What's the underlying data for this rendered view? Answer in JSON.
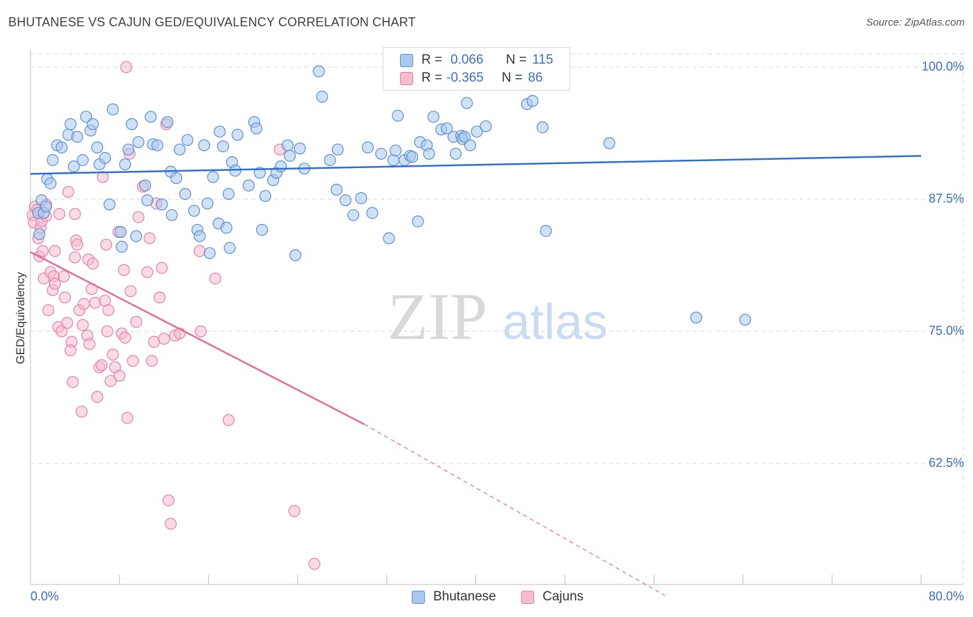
{
  "title": "BHUTANESE VS CAJUN GED/EQUIVALENCY CORRELATION CHART",
  "source": "Source: ZipAtlas.com",
  "watermark": {
    "zip": "ZIP",
    "atlas": "atlas"
  },
  "legend": {
    "rows": [
      {
        "r_label": "R =",
        "r_value": "0.066",
        "n_label": "N =",
        "n_value": "115"
      },
      {
        "r_label": "R =",
        "r_value": "-0.365",
        "n_label": "N =",
        "n_value": "86"
      }
    ]
  },
  "bottom_legend": {
    "series1": "Bhutanese",
    "series2": "Cajuns"
  },
  "colors": {
    "blue_fill": "#a9c8ef",
    "blue_stroke": "#5b8fd6",
    "blue_line": "#2f6fce",
    "pink_fill": "#f6bccd",
    "pink_stroke": "#e681a3",
    "pink_line": "#e56b98",
    "tick_text": "#3a6fc4",
    "grid": "#d9d9d9"
  },
  "chart_data": {
    "type": "scatter",
    "title": "BHUTANESE VS CAJUN GED/EQUIVALENCY CORRELATION CHART",
    "xlabel": "",
    "ylabel": "GED/Equivalency",
    "xlim": [
      0,
      80
    ],
    "ylim": [
      50,
      101
    ],
    "x_tick_labels": [
      "0.0%",
      "80.0%"
    ],
    "y_ticks": [
      62.5,
      75.0,
      87.5,
      100.0
    ],
    "y_tick_labels": [
      "62.5%",
      "75.0%",
      "87.5%",
      "100.0%"
    ],
    "grid": true,
    "series": [
      {
        "name": "Bhutanese",
        "r": 0.066,
        "n": 115,
        "trend": {
          "x0": 0,
          "y0": 89.9,
          "x1": 80,
          "y1": 91.6
        },
        "points": [
          [
            0.7,
            86.2
          ],
          [
            0.8,
            84.2
          ],
          [
            1.0,
            87.4
          ],
          [
            1.2,
            86.2
          ],
          [
            1.4,
            86.8
          ],
          [
            1.5,
            89.4
          ],
          [
            1.8,
            89.0
          ],
          [
            2.0,
            91.2
          ],
          [
            2.4,
            92.6
          ],
          [
            2.8,
            92.4
          ],
          [
            3.4,
            93.6
          ],
          [
            3.6,
            94.6
          ],
          [
            3.9,
            90.6
          ],
          [
            4.2,
            93.4
          ],
          [
            4.7,
            91.2
          ],
          [
            5.0,
            95.3
          ],
          [
            5.4,
            94.0
          ],
          [
            5.6,
            94.6
          ],
          [
            6.0,
            92.4
          ],
          [
            6.2,
            90.8
          ],
          [
            6.7,
            91.4
          ],
          [
            7.1,
            87.0
          ],
          [
            7.4,
            96.0
          ],
          [
            8.1,
            84.4
          ],
          [
            8.2,
            83.0
          ],
          [
            8.5,
            90.8
          ],
          [
            8.8,
            92.2
          ],
          [
            9.1,
            94.6
          ],
          [
            9.5,
            84.0
          ],
          [
            9.7,
            92.9
          ],
          [
            10.3,
            88.8
          ],
          [
            10.5,
            87.4
          ],
          [
            10.8,
            95.3
          ],
          [
            11.0,
            92.7
          ],
          [
            11.4,
            92.6
          ],
          [
            11.8,
            87.0
          ],
          [
            12.3,
            94.8
          ],
          [
            12.6,
            90.1
          ],
          [
            12.7,
            86.0
          ],
          [
            13.1,
            89.5
          ],
          [
            13.4,
            92.2
          ],
          [
            13.9,
            88.0
          ],
          [
            14.1,
            93.1
          ],
          [
            14.7,
            86.4
          ],
          [
            15.0,
            84.6
          ],
          [
            15.2,
            84.0
          ],
          [
            15.6,
            92.6
          ],
          [
            15.9,
            87.1
          ],
          [
            16.1,
            82.4
          ],
          [
            16.4,
            89.6
          ],
          [
            16.9,
            85.2
          ],
          [
            17.0,
            93.9
          ],
          [
            17.3,
            92.5
          ],
          [
            17.6,
            84.8
          ],
          [
            17.8,
            88.0
          ],
          [
            17.9,
            82.9
          ],
          [
            18.1,
            91.0
          ],
          [
            18.4,
            90.2
          ],
          [
            18.6,
            93.6
          ],
          [
            19.6,
            88.8
          ],
          [
            20.1,
            94.8
          ],
          [
            20.3,
            94.2
          ],
          [
            20.6,
            90.0
          ],
          [
            20.8,
            84.6
          ],
          [
            21.1,
            87.8
          ],
          [
            21.8,
            89.3
          ],
          [
            22.1,
            90.0
          ],
          [
            22.5,
            90.6
          ],
          [
            23.1,
            92.6
          ],
          [
            23.3,
            91.6
          ],
          [
            23.8,
            82.2
          ],
          [
            24.2,
            92.3
          ],
          [
            24.6,
            90.4
          ],
          [
            25.9,
            99.6
          ],
          [
            26.2,
            97.2
          ],
          [
            26.9,
            91.2
          ],
          [
            27.5,
            88.4
          ],
          [
            27.6,
            92.2
          ],
          [
            28.3,
            87.4
          ],
          [
            29.0,
            86.0
          ],
          [
            29.7,
            87.6
          ],
          [
            30.3,
            92.4
          ],
          [
            30.7,
            86.2
          ],
          [
            31.5,
            91.8
          ],
          [
            32.2,
            83.8
          ],
          [
            32.6,
            91.2
          ],
          [
            32.8,
            92.1
          ],
          [
            33.0,
            95.4
          ],
          [
            33.6,
            91.2
          ],
          [
            34.1,
            91.6
          ],
          [
            34.3,
            91.5
          ],
          [
            34.8,
            85.4
          ],
          [
            35.0,
            92.9
          ],
          [
            35.6,
            92.6
          ],
          [
            35.8,
            91.8
          ],
          [
            36.2,
            95.3
          ],
          [
            36.9,
            94.1
          ],
          [
            37.4,
            94.2
          ],
          [
            38.0,
            93.4
          ],
          [
            38.2,
            91.8
          ],
          [
            38.7,
            93.5
          ],
          [
            38.8,
            93.2
          ],
          [
            39.0,
            93.4
          ],
          [
            39.2,
            96.6
          ],
          [
            39.5,
            92.6
          ],
          [
            40.1,
            93.9
          ],
          [
            40.9,
            94.4
          ],
          [
            43.2,
            99.5
          ],
          [
            44.2,
            98.4
          ],
          [
            44.6,
            96.5
          ],
          [
            45.1,
            96.8
          ],
          [
            46.0,
            94.3
          ],
          [
            46.3,
            84.5
          ],
          [
            52.0,
            92.8
          ],
          [
            59.8,
            76.3
          ],
          [
            64.2,
            76.1
          ]
        ]
      },
      {
        "name": "Cajuns",
        "r": -0.365,
        "n": 86,
        "trend": {
          "x0": 0,
          "y0": 82.5,
          "x1": 30,
          "y1": 66.2,
          "x_dash_end": 57,
          "y_dash_end": 50
        },
        "points": [
          [
            0.2,
            86.0
          ],
          [
            0.3,
            85.3
          ],
          [
            0.4,
            86.8
          ],
          [
            0.6,
            86.5
          ],
          [
            0.7,
            83.8
          ],
          [
            0.8,
            82.1
          ],
          [
            0.9,
            84.8
          ],
          [
            1.0,
            85.4
          ],
          [
            1.1,
            82.6
          ],
          [
            1.2,
            80.0
          ],
          [
            1.4,
            85.9
          ],
          [
            1.6,
            77.0
          ],
          [
            1.8,
            80.6
          ],
          [
            2.0,
            78.9
          ],
          [
            2.1,
            80.2
          ],
          [
            2.2,
            82.6
          ],
          [
            2.5,
            75.4
          ],
          [
            2.6,
            86.1
          ],
          [
            2.8,
            75.0
          ],
          [
            3.0,
            80.2
          ],
          [
            3.1,
            78.2
          ],
          [
            3.3,
            75.8
          ],
          [
            3.4,
            88.2
          ],
          [
            3.7,
            74.0
          ],
          [
            3.8,
            70.2
          ],
          [
            4.0,
            86.1
          ],
          [
            4.1,
            83.6
          ],
          [
            4.2,
            83.2
          ],
          [
            4.4,
            77.0
          ],
          [
            4.6,
            67.4
          ],
          [
            4.7,
            75.6
          ],
          [
            4.8,
            77.6
          ],
          [
            5.1,
            74.6
          ],
          [
            5.2,
            81.8
          ],
          [
            5.3,
            73.8
          ],
          [
            5.6,
            81.4
          ],
          [
            5.8,
            77.7
          ],
          [
            6.0,
            68.8
          ],
          [
            6.2,
            71.6
          ],
          [
            6.4,
            71.8
          ],
          [
            6.5,
            89.6
          ],
          [
            6.7,
            77.9
          ],
          [
            6.9,
            75.0
          ],
          [
            7.2,
            70.3
          ],
          [
            7.4,
            72.8
          ],
          [
            7.6,
            71.6
          ],
          [
            7.9,
            84.4
          ],
          [
            8.0,
            70.8
          ],
          [
            8.2,
            74.8
          ],
          [
            8.4,
            80.8
          ],
          [
            8.5,
            74.4
          ],
          [
            8.7,
            66.8
          ],
          [
            8.9,
            91.8
          ],
          [
            9.2,
            72.2
          ],
          [
            9.5,
            75.9
          ],
          [
            9.7,
            85.8
          ],
          [
            10.1,
            88.7
          ],
          [
            10.5,
            80.6
          ],
          [
            10.7,
            83.8
          ],
          [
            10.9,
            72.2
          ],
          [
            11.1,
            74.0
          ],
          [
            11.3,
            87.1
          ],
          [
            11.6,
            78.2
          ],
          [
            12.0,
            74.3
          ],
          [
            12.2,
            94.6
          ],
          [
            12.4,
            59.0
          ],
          [
            12.6,
            56.8
          ],
          [
            13.0,
            74.6
          ],
          [
            13.4,
            74.8
          ],
          [
            15.2,
            82.6
          ],
          [
            15.3,
            75.0
          ],
          [
            16.6,
            80.0
          ],
          [
            17.8,
            66.6
          ],
          [
            22.4,
            92.2
          ],
          [
            23.7,
            58.0
          ],
          [
            25.5,
            53.0
          ],
          [
            8.6,
            100.0
          ],
          [
            1.4,
            87.0
          ],
          [
            2.2,
            79.5
          ],
          [
            4.0,
            82.0
          ],
          [
            5.5,
            79.0
          ],
          [
            6.8,
            83.2
          ],
          [
            9.0,
            78.8
          ],
          [
            11.8,
            81.0
          ],
          [
            3.6,
            73.2
          ],
          [
            7.0,
            77.0
          ]
        ]
      }
    ]
  }
}
